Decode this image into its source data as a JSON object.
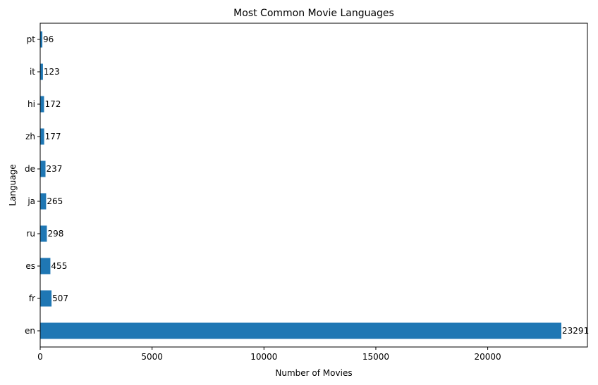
{
  "chart_data": {
    "type": "bar",
    "orientation": "horizontal",
    "title": "Most Common Movie Languages",
    "xlabel": "Number of Movies",
    "ylabel": "Language",
    "categories": [
      "en",
      "fr",
      "es",
      "ru",
      "ja",
      "de",
      "zh",
      "hi",
      "it",
      "pt"
    ],
    "values": [
      23291,
      507,
      455,
      298,
      265,
      237,
      177,
      172,
      123,
      96
    ],
    "xlim": [
      0,
      24456
    ],
    "xticks": [
      0,
      5000,
      10000,
      15000,
      20000
    ],
    "grid": false,
    "bar_color": "#1f77b4",
    "data_labels": true
  }
}
